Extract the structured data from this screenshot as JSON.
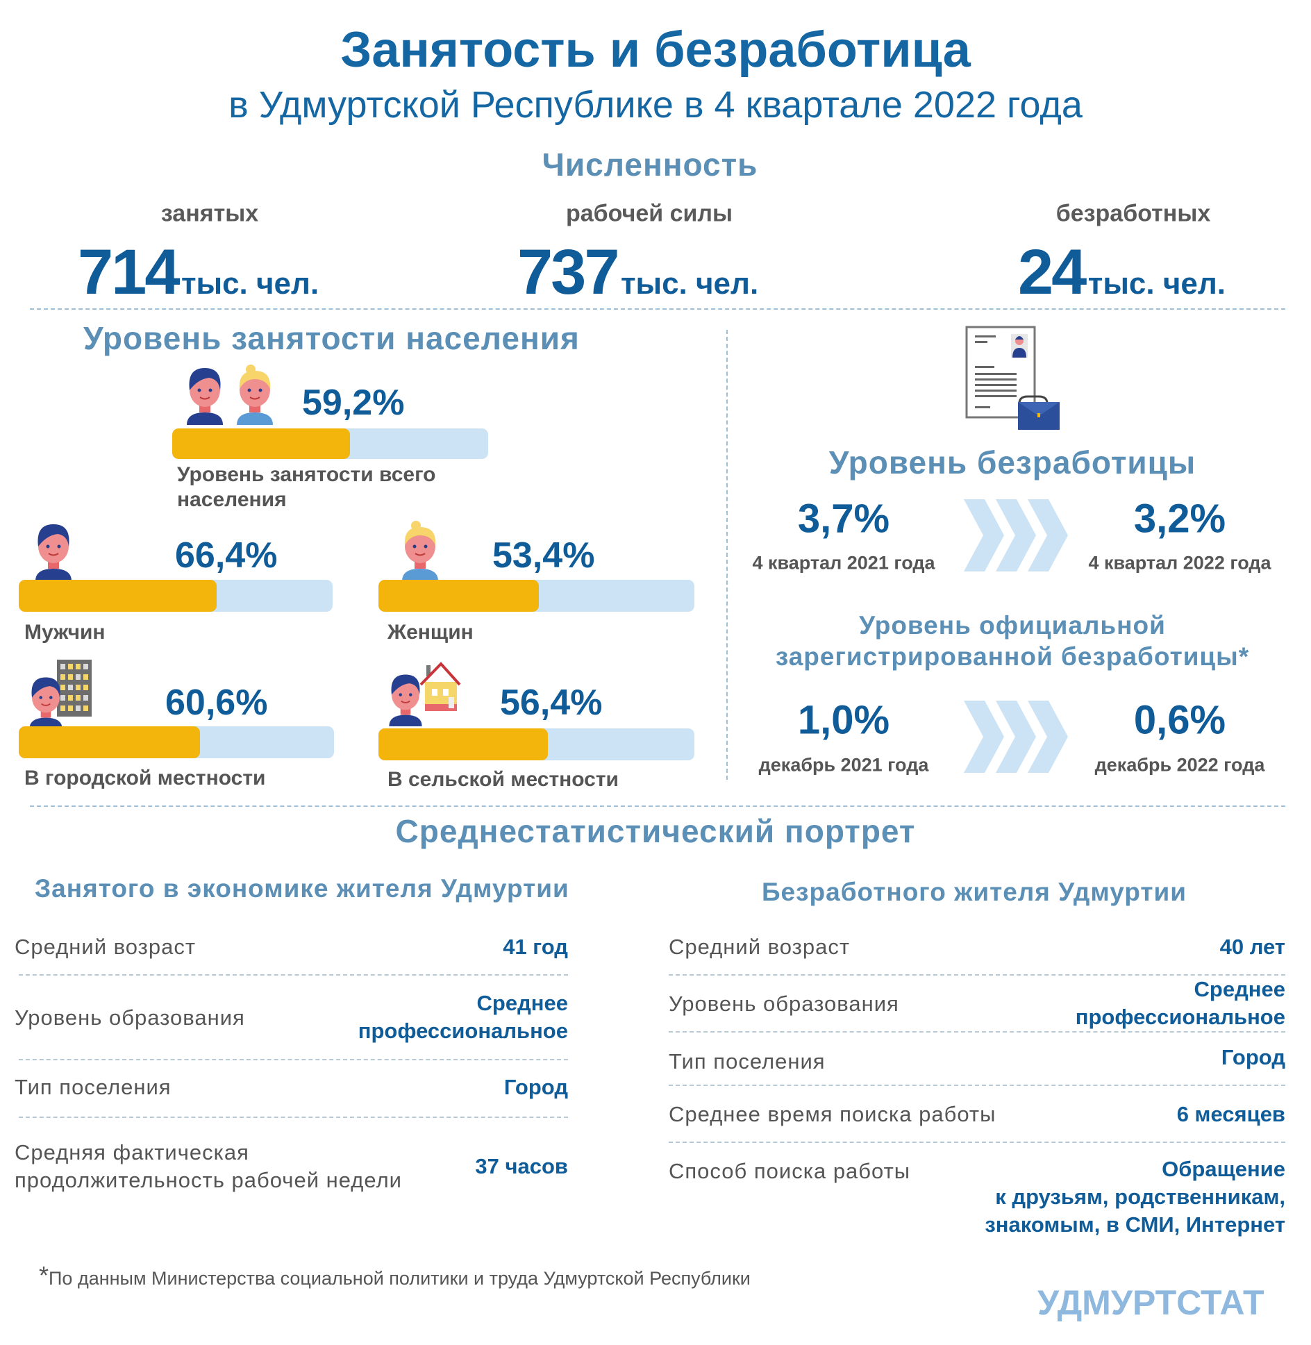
{
  "header": {
    "title": "Занятость и безработица",
    "subtitle": "в Удмуртской Республике в 4 квартале 2022 года"
  },
  "numbers": {
    "heading": "Численность",
    "items": [
      {
        "label": "занятых",
        "value": "714",
        "unit": "тыс. чел."
      },
      {
        "label": "рабочей силы",
        "value": "737",
        "unit": "тыс. чел."
      },
      {
        "label": "безработных",
        "value": "24",
        "unit": "тыс. чел."
      }
    ]
  },
  "employment": {
    "heading": "Уровень занятости населения",
    "total": {
      "value": 59.2,
      "text": "59,2%",
      "label_line1": "Уровень занятости всего",
      "label_line2": "населения"
    },
    "men": {
      "value": 66.4,
      "text": "66,4%",
      "label": "Мужчин"
    },
    "women": {
      "value": 53.4,
      "text": "53,4%",
      "label": "Женщин"
    },
    "urban": {
      "value": 60.6,
      "text": "60,6%",
      "label": "В городской местности"
    },
    "rural": {
      "value": 56.4,
      "text": "56,4%",
      "label": "В сельской местности"
    },
    "colors": {
      "fill": "#f3b40c",
      "track": "#cbe3f5"
    }
  },
  "unemployment": {
    "heading": "Уровень безработицы",
    "from": {
      "value": "3,7%",
      "period": "4 квартал  2021 года"
    },
    "to": {
      "value": "3,2%",
      "period": "4 квартал  2022 года"
    },
    "registered_heading_line1": "Уровень официальной",
    "registered_heading_line2": "зарегистрированной безработицы*",
    "registered_from": {
      "value": "1,0%",
      "period": "декабрь 2021 года"
    },
    "registered_to": {
      "value": "0,6%",
      "period": "декабрь 2022 года"
    }
  },
  "portrait": {
    "heading": "Среднестатистический портрет",
    "employed": {
      "title": "Занятого в экономике жителя Удмуртии",
      "rows": [
        {
          "label": "Средний возраст",
          "value": "41 год"
        },
        {
          "label": "Уровень образования",
          "value_line1": "Среднее",
          "value_line2": "профессиональное"
        },
        {
          "label": "Тип поселения",
          "value": "Город"
        },
        {
          "label_line1": "Средняя фактическая",
          "label_line2": "продолжительность рабочей недели",
          "value": "37 часов"
        }
      ]
    },
    "unemployed": {
      "title": "Безработного жителя Удмуртии",
      "rows": [
        {
          "label": "Средний возраст",
          "value": "40 лет"
        },
        {
          "label": "Уровень образования",
          "value_line1": "Среднее",
          "value_line2": "профессиональное"
        },
        {
          "label": "Тип поселения",
          "value": "Город"
        },
        {
          "label": "Среднее время поиска работы",
          "value": "6 месяцев"
        },
        {
          "label": "Способ поиска работы",
          "value_line1": "Обращение",
          "value_line2": "к друзьям, родственникам,",
          "value_line3": "знакомым, в СМИ, Интернет"
        }
      ]
    }
  },
  "footer": {
    "note_mark": "*",
    "note": "По данным Министерства социальной политики и труда Удмуртской Республики",
    "logo": "УДМУРТСТАТ"
  }
}
